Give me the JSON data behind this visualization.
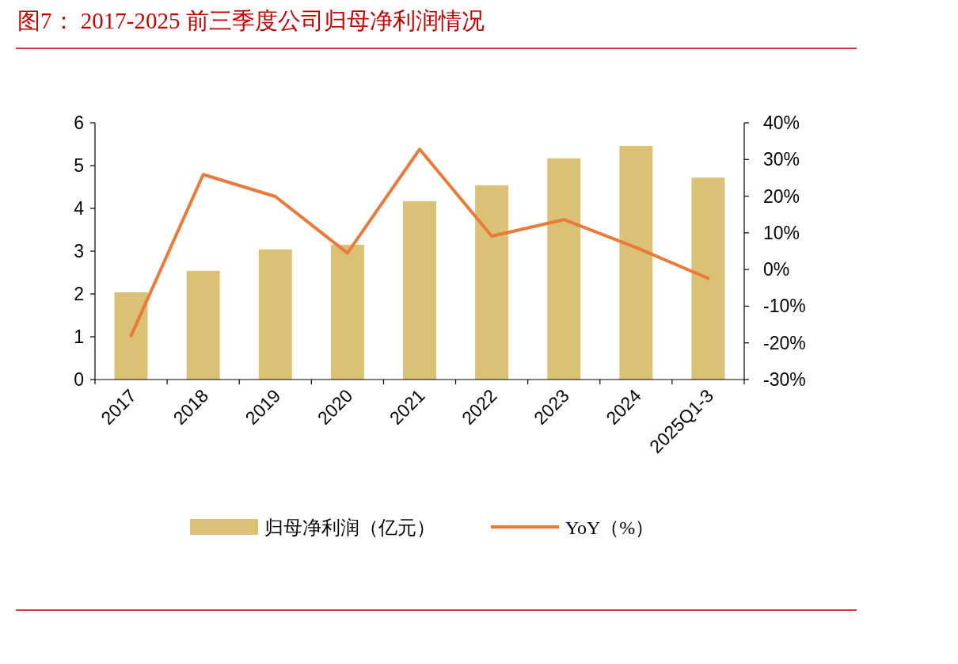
{
  "chart_data": {
    "type": "bar",
    "title": "图7：  2017-2025 前三季度公司归母净利润情况",
    "categories": [
      "2017",
      "2018",
      "2019",
      "2020",
      "2021",
      "2022",
      "2023",
      "2024",
      "2025Q1-3"
    ],
    "series": [
      {
        "name": "归母净利润（亿元）",
        "color": "#dbc176",
        "values": [
          2.04,
          2.54,
          3.04,
          3.15,
          4.17,
          4.54,
          5.17,
          5.46,
          4.72
        ]
      },
      {
        "name": "YoY（%）",
        "type": "line",
        "axis": "y2",
        "color": "#e97a3c",
        "values": [
          -18.1,
          25.9,
          19.9,
          4.5,
          32.8,
          9.1,
          13.6,
          6.0,
          -2.4
        ]
      }
    ],
    "ylim": [
      0,
      6
    ],
    "yticks": [
      0,
      1,
      2,
      3,
      4,
      5,
      6
    ],
    "y2lim": [
      -30,
      40
    ],
    "y2ticks": [
      {
        "value": -30,
        "label": "-30%"
      },
      {
        "value": -20,
        "label": "-20%"
      },
      {
        "value": -10,
        "label": "-10%"
      },
      {
        "value": 0,
        "label": "0%"
      },
      {
        "value": 10,
        "label": "10%"
      },
      {
        "value": 20,
        "label": "20%"
      },
      {
        "value": 30,
        "label": "30%"
      },
      {
        "value": 40,
        "label": "40%"
      }
    ],
    "legend": "bottom",
    "grid": false
  }
}
